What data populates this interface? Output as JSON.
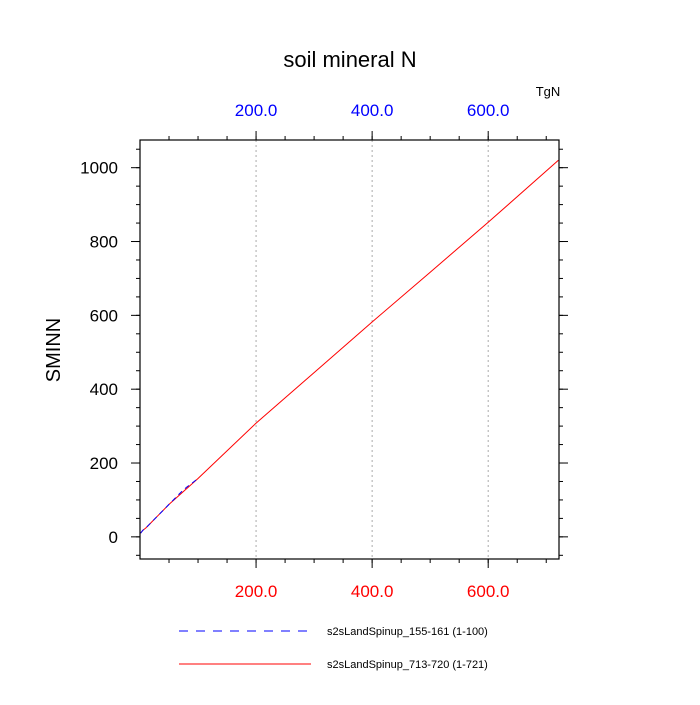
{
  "chart_data": {
    "type": "line",
    "title": "soil mineral N",
    "ylabel": "SMINN",
    "units_label": "TgN",
    "xlim": [
      0,
      722
    ],
    "ylim": [
      -60,
      1075
    ],
    "x_ticks": [
      {
        "value": 200,
        "label": "200.0"
      },
      {
        "value": 400,
        "label": "400.0"
      },
      {
        "value": 600,
        "label": "600.0"
      }
    ],
    "y_ticks": [
      {
        "value": 0,
        "label": "0"
      },
      {
        "value": 200,
        "label": "200"
      },
      {
        "value": 400,
        "label": "400"
      },
      {
        "value": 600,
        "label": "600"
      },
      {
        "value": 800,
        "label": "800"
      },
      {
        "value": 1000,
        "label": "1000"
      }
    ],
    "x_minor_step": 50,
    "y_minor_step": 50,
    "grid": "vertical dotted at major x ticks",
    "colors": {
      "bottom_tick_labels": "#ff0000",
      "top_tick_labels": "#0000ff",
      "grid": "#aaaaaa"
    },
    "legend_placement": "bottom",
    "series": [
      {
        "name": "s2sLandSpinup_155-161 (1-100)",
        "color": "#0000ff",
        "dash": "dashed",
        "x": [
          1,
          5,
          10,
          20,
          30,
          40,
          50,
          60,
          70,
          80,
          90,
          100
        ],
        "y": [
          10,
          18,
          24,
          40,
          56,
          72,
          88,
          104,
          120,
          134,
          146,
          158
        ]
      },
      {
        "name": "s2sLandSpinup_713-720 (1-721)",
        "color": "#ff0000",
        "dash": "solid",
        "x": [
          1,
          5,
          10,
          20,
          30,
          50,
          100,
          200,
          300,
          400,
          500,
          600,
          721
        ],
        "y": [
          10,
          18,
          24,
          40,
          56,
          88,
          158,
          308,
          445,
          582,
          717,
          852,
          1020
        ]
      }
    ]
  }
}
